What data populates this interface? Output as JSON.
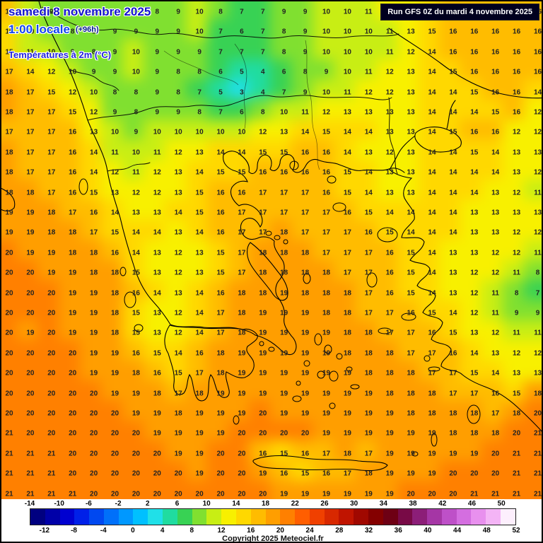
{
  "header": {
    "date_line": "samedi 8 novembre 2025",
    "time_line": "1:00 locale",
    "offset_label": "(+96h)",
    "subtitle": "Températures à 2m (°C)",
    "run_label": "Run GFS 0Z du mardi 4 novembre 2025"
  },
  "footer": {
    "copyright": "Copyright 2025 Meteociel.fr"
  },
  "colors": {
    "header_date_blue": "#1414CC",
    "header_time_blue": "#1346F0",
    "run_box_bg": "#00001E",
    "run_box_text": "#FFFFFF",
    "number_text": "#222222"
  },
  "legend": {
    "min": -14,
    "max": 52,
    "step": 2,
    "top_labels": [
      -14,
      -10,
      -6,
      -2,
      2,
      6,
      10,
      14,
      18,
      22,
      26,
      30,
      34,
      38,
      42,
      46,
      50
    ],
    "bottom_labels": [
      -12,
      -8,
      -4,
      0,
      4,
      8,
      12,
      16,
      20,
      24,
      28,
      32,
      36,
      40,
      44,
      48,
      52
    ],
    "palette": [
      "#000080",
      "#0000A8",
      "#0000D0",
      "#0020E8",
      "#0048F0",
      "#0070FA",
      "#0098FF",
      "#00C0FF",
      "#20E0E8",
      "#20DCA0",
      "#38D254",
      "#80E030",
      "#C8EE14",
      "#F8F000",
      "#FFD800",
      "#FFBC00",
      "#FF9E00",
      "#FF8000",
      "#FF5E00",
      "#F04000",
      "#D82800",
      "#C01400",
      "#A00800",
      "#840000",
      "#6E0014",
      "#780A46",
      "#8C1E78",
      "#A536A5",
      "#BE50C8",
      "#D46EE0",
      "#E890EE",
      "#F4B4F6",
      "#FDEFFD"
    ]
  },
  "chart_data": {
    "type": "heatmap",
    "title": "Températures à 2m (°C)",
    "unit": "°C",
    "rows": 25,
    "cols": 26,
    "values": [
      [
        16,
        11,
        9,
        9,
        8,
        9,
        9,
        8,
        9,
        10,
        8,
        7,
        7,
        9,
        9,
        10,
        10,
        11,
        12,
        13,
        15,
        16,
        16,
        16,
        16,
        16
      ],
      [
        15,
        10,
        9,
        8,
        8,
        9,
        9,
        9,
        9,
        10,
        7,
        6,
        7,
        8,
        9,
        10,
        10,
        10,
        11,
        13,
        15,
        16,
        16,
        16,
        16,
        16
      ],
      [
        15,
        11,
        10,
        9,
        8,
        9,
        10,
        9,
        9,
        9,
        7,
        7,
        7,
        8,
        9,
        10,
        10,
        10,
        11,
        12,
        14,
        16,
        16,
        16,
        16,
        16
      ],
      [
        17,
        14,
        12,
        10,
        9,
        9,
        10,
        9,
        8,
        8,
        6,
        5,
        4,
        6,
        8,
        9,
        10,
        11,
        12,
        13,
        14,
        15,
        16,
        16,
        16,
        16
      ],
      [
        18,
        17,
        15,
        12,
        10,
        8,
        8,
        9,
        8,
        7,
        5,
        3,
        4,
        7,
        9,
        10,
        11,
        12,
        12,
        13,
        14,
        14,
        15,
        16,
        16,
        14
      ],
      [
        18,
        17,
        17,
        15,
        12,
        9,
        8,
        9,
        9,
        8,
        7,
        6,
        8,
        10,
        11,
        12,
        13,
        13,
        13,
        13,
        14,
        14,
        14,
        15,
        16,
        12
      ],
      [
        17,
        17,
        17,
        16,
        13,
        10,
        9,
        10,
        10,
        10,
        10,
        10,
        12,
        13,
        14,
        15,
        14,
        14,
        13,
        13,
        14,
        15,
        16,
        16,
        12,
        12
      ],
      [
        18,
        17,
        17,
        16,
        14,
        11,
        10,
        11,
        12,
        13,
        14,
        14,
        15,
        15,
        16,
        16,
        14,
        13,
        12,
        13,
        14,
        14,
        15,
        14,
        13,
        13
      ],
      [
        18,
        17,
        17,
        16,
        14,
        12,
        11,
        12,
        13,
        14,
        15,
        15,
        16,
        16,
        16,
        16,
        15,
        14,
        13,
        13,
        14,
        14,
        14,
        14,
        13,
        12
      ],
      [
        18,
        18,
        17,
        16,
        15,
        13,
        12,
        12,
        13,
        15,
        16,
        16,
        17,
        17,
        17,
        16,
        15,
        14,
        13,
        13,
        14,
        14,
        14,
        13,
        12,
        11
      ],
      [
        19,
        19,
        18,
        17,
        16,
        14,
        13,
        13,
        14,
        15,
        16,
        17,
        17,
        17,
        17,
        17,
        16,
        15,
        14,
        14,
        14,
        14,
        13,
        13,
        13,
        13
      ],
      [
        19,
        19,
        18,
        18,
        17,
        15,
        14,
        14,
        13,
        14,
        16,
        17,
        17,
        18,
        17,
        17,
        17,
        16,
        15,
        14,
        14,
        14,
        13,
        13,
        12,
        12
      ],
      [
        20,
        19,
        19,
        18,
        18,
        16,
        14,
        13,
        12,
        13,
        15,
        17,
        18,
        18,
        18,
        17,
        17,
        17,
        16,
        15,
        14,
        13,
        13,
        12,
        12,
        11
      ],
      [
        20,
        20,
        19,
        19,
        18,
        18,
        15,
        13,
        12,
        13,
        15,
        17,
        18,
        18,
        18,
        18,
        17,
        17,
        16,
        15,
        14,
        13,
        12,
        12,
        11,
        8
      ],
      [
        20,
        20,
        20,
        19,
        19,
        18,
        16,
        14,
        13,
        14,
        16,
        18,
        18,
        19,
        18,
        18,
        18,
        17,
        16,
        15,
        14,
        13,
        12,
        11,
        8,
        7
      ],
      [
        20,
        20,
        20,
        19,
        19,
        18,
        15,
        13,
        12,
        14,
        17,
        18,
        19,
        19,
        19,
        18,
        18,
        17,
        17,
        16,
        15,
        14,
        12,
        11,
        9,
        9
      ],
      [
        20,
        19,
        20,
        19,
        19,
        18,
        15,
        13,
        12,
        14,
        17,
        18,
        19,
        19,
        19,
        19,
        18,
        18,
        17,
        17,
        16,
        15,
        13,
        12,
        11,
        11
      ],
      [
        20,
        20,
        20,
        20,
        19,
        19,
        16,
        15,
        14,
        16,
        18,
        19,
        19,
        19,
        19,
        19,
        18,
        18,
        18,
        17,
        17,
        16,
        14,
        13,
        12,
        12
      ],
      [
        20,
        20,
        20,
        20,
        19,
        19,
        18,
        16,
        15,
        17,
        18,
        19,
        19,
        19,
        19,
        19,
        19,
        18,
        18,
        18,
        17,
        17,
        15,
        14,
        13,
        13
      ],
      [
        20,
        20,
        20,
        20,
        20,
        19,
        19,
        18,
        17,
        18,
        19,
        19,
        19,
        19,
        19,
        19,
        19,
        19,
        18,
        18,
        18,
        17,
        17,
        16,
        15,
        18
      ],
      [
        20,
        20,
        20,
        20,
        20,
        20,
        19,
        19,
        18,
        19,
        19,
        19,
        20,
        19,
        19,
        19,
        19,
        19,
        19,
        18,
        18,
        18,
        18,
        17,
        18,
        20
      ],
      [
        21,
        20,
        20,
        20,
        20,
        20,
        20,
        19,
        19,
        19,
        19,
        20,
        20,
        20,
        20,
        19,
        19,
        19,
        19,
        19,
        19,
        18,
        18,
        18,
        20,
        21
      ],
      [
        21,
        21,
        21,
        20,
        20,
        20,
        20,
        20,
        19,
        19,
        20,
        20,
        16,
        15,
        16,
        17,
        18,
        17,
        19,
        19,
        19,
        19,
        19,
        20,
        21,
        21
      ],
      [
        21,
        21,
        21,
        20,
        20,
        20,
        20,
        20,
        20,
        19,
        20,
        20,
        19,
        16,
        15,
        16,
        17,
        18,
        19,
        19,
        19,
        20,
        20,
        20,
        21,
        21
      ],
      [
        21,
        21,
        21,
        21,
        20,
        20,
        20,
        20,
        20,
        20,
        20,
        20,
        20,
        19,
        19,
        19,
        19,
        19,
        19,
        20,
        20,
        20,
        21,
        21,
        21,
        21
      ]
    ]
  }
}
